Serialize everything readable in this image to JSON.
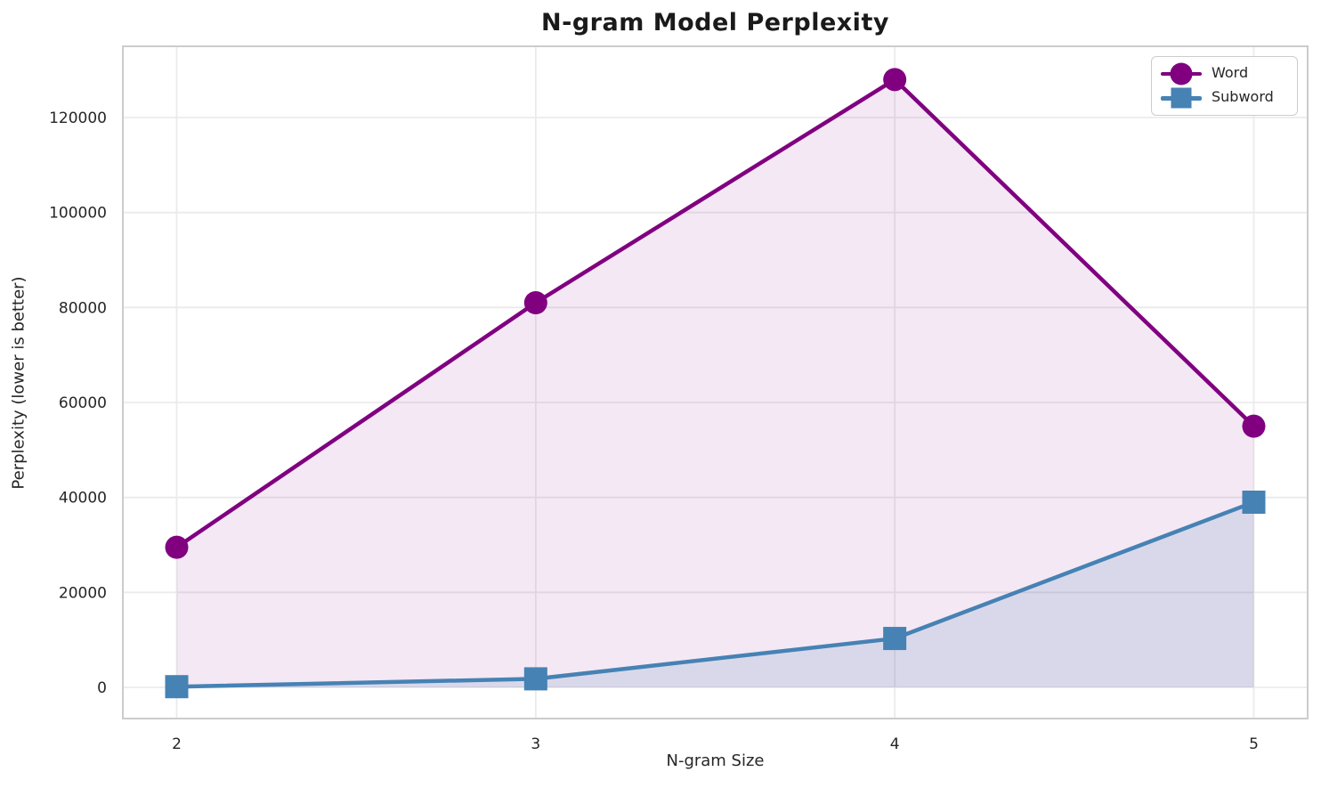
{
  "chart_data": {
    "type": "line",
    "title": "N-gram Model Perplexity",
    "xlabel": "N-gram Size",
    "ylabel": "Perplexity (lower is better)",
    "x": [
      2,
      3,
      4,
      5
    ],
    "x_tick_labels": [
      "2",
      "3",
      "4",
      "5"
    ],
    "y_ticks": [
      0,
      20000,
      40000,
      60000,
      80000,
      100000,
      120000
    ],
    "y_tick_labels": [
      "0",
      "20000",
      "40000",
      "60000",
      "80000",
      "100000",
      "120000"
    ],
    "series": [
      {
        "name": "Word",
        "marker": "circle",
        "color": "#800080",
        "fill_opacity": 0.09,
        "values": [
          29500,
          81000,
          128000,
          55000
        ]
      },
      {
        "name": "Subword",
        "marker": "square",
        "color": "#4682B4",
        "fill_opacity": 0.15,
        "values": [
          150,
          1800,
          10300,
          39000
        ]
      }
    ],
    "xlim": [
      1.85,
      5.15
    ],
    "ylim": [
      -6562,
      135000
    ],
    "baseline": 0,
    "grid": true,
    "area_fill_to_baseline": true,
    "legend_position": "upper right"
  },
  "colors": {
    "background": "#ffffff",
    "grid": "#ebebeb",
    "spine": "#cccccc",
    "tick_text": "#262626",
    "title_text": "#1a1a1a"
  },
  "layout_values": {
    "tick_font_px": 17
  }
}
